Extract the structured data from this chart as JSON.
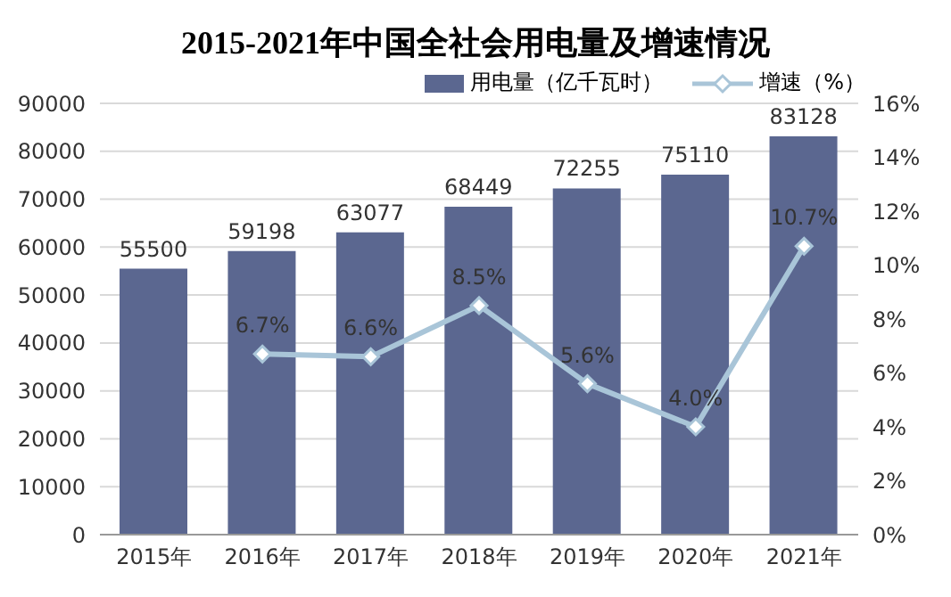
{
  "chart_data": {
    "type": "bar",
    "title": "2015-2021年中国全社会用电量及增速情况",
    "categories": [
      "2015年",
      "2016年",
      "2017年",
      "2018年",
      "2019年",
      "2020年",
      "2021年"
    ],
    "series": [
      {
        "name": "用电量（亿千瓦时）",
        "color": "#5b6790",
        "values": [
          55500,
          59198,
          63077,
          68449,
          72255,
          75110,
          83128
        ],
        "value_labels": [
          "55500",
          "59198",
          "63077",
          "68449",
          "72255",
          "75110",
          "83128"
        ]
      },
      {
        "name": "增速（%）",
        "type": "line",
        "axis": "y2",
        "color": "#a9c5d8",
        "values": [
          null,
          6.7,
          6.6,
          8.5,
          5.6,
          4.0,
          10.7
        ],
        "value_labels": [
          null,
          "6.7%",
          "6.6%",
          "8.5%",
          "5.6%",
          "4.0%",
          "10.7%"
        ]
      }
    ],
    "ylim": [
      0,
      90000
    ],
    "yticks": [
      0,
      10000,
      20000,
      30000,
      40000,
      50000,
      60000,
      70000,
      80000,
      90000
    ],
    "y2lim": [
      0,
      16
    ],
    "y2ticks": [
      {
        "value": 0,
        "label": "0%"
      },
      {
        "value": 2,
        "label": "2%"
      },
      {
        "value": 4,
        "label": "4%"
      },
      {
        "value": 6,
        "label": "6%"
      },
      {
        "value": 8,
        "label": "8%"
      },
      {
        "value": 10,
        "label": "10%"
      },
      {
        "value": 12,
        "label": "12%"
      },
      {
        "value": 14,
        "label": "14%"
      },
      {
        "value": 16,
        "label": "16%"
      }
    ],
    "grid": "y",
    "legend": "top right",
    "marker": "diamond",
    "line_style": "solid"
  }
}
